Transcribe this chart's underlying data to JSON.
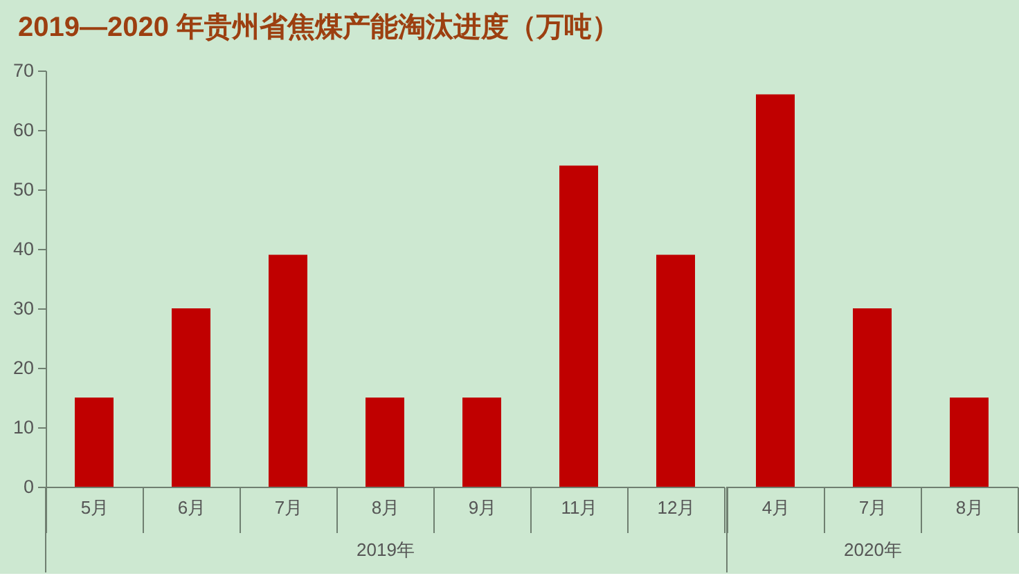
{
  "chart_data": [
    {
      "type": "bar",
      "title": "2019—2020 年贵州省焦煤产能淘汰进度（万吨）",
      "xlabel": "2019年",
      "categories": [
        "5月",
        "6月",
        "7月",
        "8月",
        "9月",
        "11月",
        "12月"
      ],
      "values": [
        15,
        30,
        39,
        15,
        15,
        54,
        39
      ],
      "color": "#c00000",
      "ylim": [
        0,
        70
      ],
      "yticks": [
        0,
        10,
        20,
        30,
        40,
        50,
        60,
        70
      ]
    },
    {
      "type": "bar",
      "xlabel": "2020年",
      "categories": [
        "4月",
        "7月",
        "8月"
      ],
      "values": [
        66,
        30,
        15
      ],
      "color": "#c00000",
      "ylim": [
        0,
        70
      ],
      "yticks": [
        0,
        10,
        20,
        30,
        40,
        50,
        60,
        70
      ],
      "tick_labels": "x"
    }
  ]
}
